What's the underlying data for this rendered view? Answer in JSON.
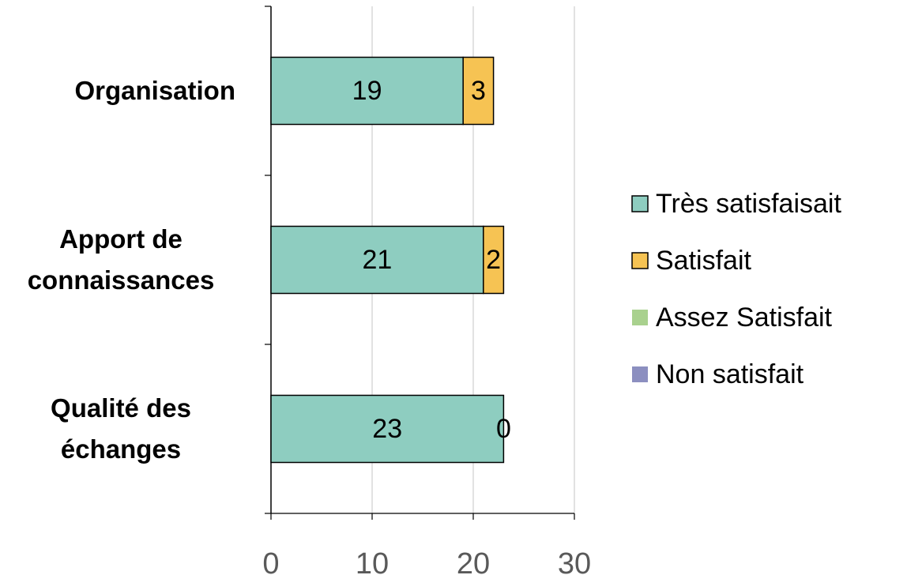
{
  "chart_data": {
    "type": "stacked_barh",
    "categories": [
      "Organisation",
      "Apport de connaissances",
      "Qualité des échanges"
    ],
    "series": [
      {
        "name": "Très satisfaisait",
        "color": "#8ecdc0",
        "values": [
          19,
          21,
          23
        ]
      },
      {
        "name": "Satisfait",
        "color": "#f6c353",
        "values": [
          3,
          2,
          0
        ]
      },
      {
        "name": "Assez Satisfait",
        "color": "#a9d18e",
        "values": [
          null,
          null,
          null
        ]
      },
      {
        "name": "Non satisfait",
        "color": "#8c8fc0",
        "values": [
          null,
          null,
          null
        ]
      }
    ],
    "xlim": [
      0,
      30
    ],
    "xticks": [
      0,
      10,
      20,
      30
    ],
    "grid": true,
    "legend": "right"
  }
}
